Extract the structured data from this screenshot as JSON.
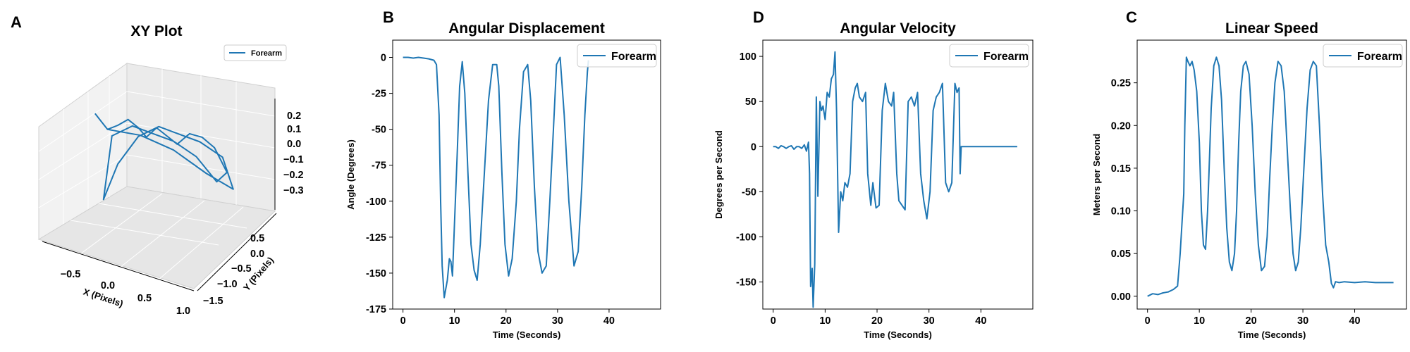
{
  "figure": {
    "line_color": "#1f77b4",
    "background": "#ffffff"
  },
  "chart_data": [
    {
      "type": "line3d",
      "panel_letter": "A",
      "title": "XY Plot",
      "xlabel": "X (Pixels)",
      "ylabel": "Y (Pixels)",
      "zlabel": "",
      "x_ticks": [
        "−0.5",
        "0.0",
        "0.5",
        "1.0"
      ],
      "y_ticks": [
        "0.5",
        "0.0",
        "−0.5",
        "−1.0",
        "−1.5"
      ],
      "z_ticks": [
        "0.2",
        "0.1",
        "0.0",
        "−0.1",
        "−0.2",
        "−0.3"
      ],
      "xlim": [
        -0.75,
        1.0
      ],
      "ylim": [
        -1.7,
        0.7
      ],
      "zlim": [
        -0.35,
        0.25
      ],
      "legend": [
        "Forearm"
      ],
      "legend_position": "upper right",
      "grid": true,
      "series": [
        {
          "name": "Forearm",
          "x": [
            -0.5,
            -0.45,
            -0.4,
            -0.3,
            -0.2,
            -0.1,
            0.0,
            0.1,
            0.2,
            0.3,
            0.4,
            0.5,
            0.6,
            0.7,
            0.6,
            0.4,
            0.2,
            0.0,
            -0.2,
            -0.4,
            -0.45,
            -0.3,
            -0.1,
            0.1,
            0.3,
            0.5,
            0.7,
            0.75,
            0.5,
            0.2,
            -0.1,
            -0.4
          ],
          "y": [
            0.5,
            0.4,
            0.3,
            0.2,
            0.1,
            0.0,
            0.0,
            -0.1,
            -0.2,
            -0.3,
            -0.5,
            -0.7,
            -0.9,
            -1.1,
            -1.0,
            -0.8,
            -0.5,
            -0.3,
            -0.1,
            0.1,
            0.3,
            0.2,
            0.0,
            -0.2,
            -0.4,
            -0.6,
            -0.9,
            -1.2,
            -0.9,
            -0.5,
            -0.1,
            0.3
          ],
          "z": [
            0.2,
            0.15,
            0.1,
            0.12,
            0.15,
            0.1,
            0.05,
            0.1,
            0.05,
            0.0,
            0.05,
            0.02,
            -0.05,
            -0.2,
            -0.25,
            -0.1,
            0.0,
            0.05,
            0.1,
            0.05,
            -0.3,
            -0.1,
            0.05,
            0.1,
            0.05,
            0.0,
            -0.1,
            -0.3,
            -0.2,
            -0.05,
            0.05,
            0.1
          ]
        }
      ]
    },
    {
      "type": "line",
      "panel_letter": "B",
      "title": "Angular Displacement",
      "xlabel": "Time (Seconds)",
      "ylabel": "Angle (Degrees)",
      "xlim": [
        -2,
        50
      ],
      "ylim": [
        -175,
        12
      ],
      "x_ticks": [
        0,
        10,
        20,
        30,
        40
      ],
      "y_ticks": [
        0,
        -25,
        -50,
        -75,
        -100,
        -125,
        -150,
        -175
      ],
      "legend": [
        "Forearm"
      ],
      "legend_position": "upper right",
      "grid": false,
      "series": [
        {
          "name": "Forearm",
          "x": [
            0,
            1,
            2,
            3,
            4,
            5,
            6,
            6.5,
            7,
            7.3,
            7.6,
            8.0,
            8.6,
            9.0,
            9.3,
            9.6,
            10.0,
            10.5,
            11.0,
            11.5,
            12.0,
            12.6,
            13.2,
            13.8,
            14.4,
            15.0,
            15.8,
            16.6,
            17.4,
            18.2,
            18.6,
            19.2,
            19.8,
            20.5,
            21.2,
            22.0,
            22.6,
            23.4,
            24.2,
            24.8,
            25.5,
            26.2,
            27.0,
            27.8,
            28.5,
            29.2,
            29.8,
            30.5,
            31.3,
            32.2,
            33.2,
            34.0,
            34.7,
            35.3,
            35.8,
            36.0
          ],
          "y": [
            0,
            0,
            -0.5,
            0,
            -0.5,
            -1,
            -2,
            -5,
            -40,
            -100,
            -145,
            -167,
            -155,
            -140,
            -142,
            -152,
            -115,
            -70,
            -20,
            -3,
            -25,
            -80,
            -130,
            -148,
            -155,
            -130,
            -80,
            -30,
            -5,
            -5,
            -20,
            -80,
            -130,
            -152,
            -140,
            -100,
            -50,
            -10,
            -5,
            -30,
            -90,
            -135,
            -150,
            -145,
            -100,
            -50,
            -5,
            0,
            -40,
            -100,
            -145,
            -135,
            -90,
            -40,
            -10,
            -2
          ]
        }
      ]
    },
    {
      "type": "line",
      "panel_letter": "D",
      "title": "Angular Velocity",
      "xlabel": "Time (Seconds)",
      "ylabel": "Degrees per Second",
      "xlim": [
        -2,
        50
      ],
      "ylim": [
        -180,
        118
      ],
      "x_ticks": [
        0,
        10,
        20,
        30,
        40
      ],
      "y_ticks": [
        100,
        50,
        0,
        -50,
        -100,
        -150
      ],
      "legend": [
        "Forearm"
      ],
      "legend_position": "upper right",
      "grid": false,
      "series": [
        {
          "name": "Forearm",
          "x": [
            0,
            0.5,
            1,
            1.5,
            2,
            2.5,
            3,
            3.5,
            4,
            4.5,
            5,
            5.5,
            6,
            6.4,
            6.8,
            7.0,
            7.2,
            7.5,
            7.7,
            8.0,
            8.3,
            8.6,
            9.0,
            9.3,
            9.6,
            10.0,
            10.4,
            10.8,
            11.2,
            11.6,
            11.9,
            12.2,
            12.6,
            13.0,
            13.4,
            13.8,
            14.3,
            14.8,
            15.3,
            15.8,
            16.2,
            16.6,
            17.2,
            17.8,
            18.2,
            18.8,
            19.2,
            19.8,
            20.4,
            21.0,
            21.6,
            22.2,
            22.8,
            23.2,
            23.8,
            24.2,
            24.8,
            25.4,
            26.0,
            26.6,
            27.2,
            27.8,
            28.4,
            29.0,
            29.6,
            30.2,
            30.8,
            31.4,
            32.0,
            32.6,
            33.2,
            33.8,
            34.4,
            35.0,
            35.4,
            35.8,
            36.0,
            36.2,
            37,
            38,
            39,
            40,
            41,
            42,
            43,
            44,
            45,
            46,
            47
          ],
          "y": [
            0,
            0,
            -2,
            1,
            0,
            -2,
            0,
            1,
            -3,
            0,
            0,
            -2,
            2,
            -5,
            5,
            -30,
            -155,
            -135,
            -178,
            -130,
            55,
            -55,
            50,
            40,
            45,
            30,
            60,
            55,
            75,
            80,
            105,
            40,
            -95,
            -50,
            -60,
            -40,
            -45,
            -30,
            50,
            65,
            70,
            55,
            50,
            60,
            -30,
            -65,
            -40,
            -68,
            -65,
            40,
            70,
            50,
            45,
            60,
            -30,
            -60,
            -65,
            -70,
            50,
            55,
            45,
            60,
            -30,
            -60,
            -80,
            -50,
            40,
            55,
            60,
            70,
            -40,
            -50,
            -40,
            70,
            60,
            65,
            -30,
            0,
            0,
            0,
            0,
            0,
            0,
            0,
            0,
            0,
            0,
            0,
            0
          ]
        }
      ]
    },
    {
      "type": "line",
      "panel_letter": "C",
      "title": "Linear Speed",
      "xlabel": "Time (Seconds)",
      "ylabel": "Meters per Second",
      "xlim": [
        -2,
        50
      ],
      "ylim": [
        -0.015,
        0.3
      ],
      "x_ticks": [
        0,
        10,
        20,
        30,
        40
      ],
      "y_ticks": [
        0.0,
        0.05,
        0.1,
        0.15,
        0.2,
        0.25
      ],
      "legend": [
        "Forearm"
      ],
      "legend_position": "upper right",
      "grid": false,
      "series": [
        {
          "name": "Forearm",
          "x": [
            0,
            1,
            2,
            3,
            4,
            5,
            5.8,
            6.3,
            6.7,
            7.0,
            7.2,
            7.5,
            7.8,
            8.2,
            8.6,
            9.0,
            9.5,
            10.0,
            10.4,
            10.8,
            11.2,
            11.6,
            11.9,
            12.3,
            12.8,
            13.3,
            13.8,
            14.3,
            14.8,
            15.3,
            15.8,
            16.3,
            16.8,
            17.2,
            17.6,
            18.0,
            18.5,
            19.0,
            19.6,
            20.2,
            20.8,
            21.4,
            22.0,
            22.6,
            23.1,
            23.6,
            24.1,
            24.6,
            25.2,
            25.8,
            26.4,
            27.0,
            27.6,
            28.1,
            28.6,
            29.1,
            29.6,
            30.2,
            30.8,
            31.4,
            32.0,
            32.6,
            33.2,
            33.8,
            34.4,
            35.0,
            35.5,
            35.9,
            36.3,
            37,
            38,
            40,
            42,
            44,
            46,
            47.5
          ],
          "y": [
            0.0,
            0.003,
            0.002,
            0.004,
            0.005,
            0.008,
            0.012,
            0.05,
            0.09,
            0.12,
            0.2,
            0.28,
            0.275,
            0.27,
            0.275,
            0.265,
            0.24,
            0.18,
            0.1,
            0.06,
            0.055,
            0.1,
            0.15,
            0.22,
            0.27,
            0.28,
            0.27,
            0.23,
            0.15,
            0.08,
            0.04,
            0.03,
            0.05,
            0.1,
            0.18,
            0.24,
            0.27,
            0.275,
            0.26,
            0.2,
            0.12,
            0.06,
            0.03,
            0.035,
            0.07,
            0.14,
            0.2,
            0.25,
            0.275,
            0.27,
            0.24,
            0.17,
            0.1,
            0.05,
            0.03,
            0.04,
            0.08,
            0.15,
            0.22,
            0.265,
            0.275,
            0.27,
            0.2,
            0.12,
            0.06,
            0.04,
            0.015,
            0.01,
            0.017,
            0.016,
            0.017,
            0.016,
            0.017,
            0.016,
            0.016,
            0.016
          ]
        }
      ]
    }
  ]
}
